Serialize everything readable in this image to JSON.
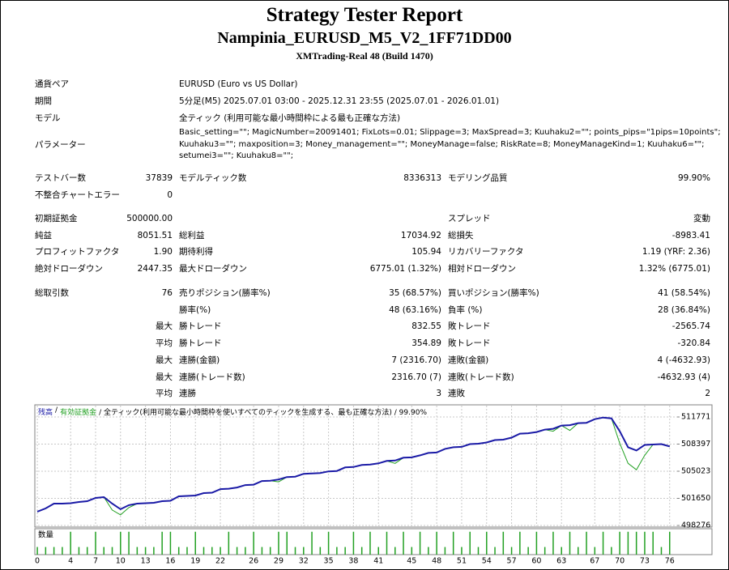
{
  "header": {
    "title": "Strategy Tester Report",
    "subtitle": "Nampinia_EURUSD_M5_V2_1FF71DD00",
    "server": "XMTrading-Real 48 (Build 1470)"
  },
  "info": [
    {
      "label": "通貨ペア",
      "value": "EURUSD (Euro vs US Dollar)"
    },
    {
      "label": "期間",
      "value": "5分足(M5) 2025.07.01 03:00 - 2025.12.31 23:55 (2025.07.01 - 2026.01.01)"
    },
    {
      "label": "モデル",
      "value": "全ティック (利用可能な最小時間枠による最も正確な方法)"
    }
  ],
  "parameters": {
    "label": "パラメーター",
    "lines": [
      "Basic_setting=\"\"; MagicNumber=20091401; FixLots=0.01; Slippage=3; MaxSpread=3; Kuuhaku2=\"\"; points_pips=\"1pips=10points\";",
      "Kuuhaku3=\"\"; maxposition=3; Money_management=\"\"; MoneyManage=false; RiskRate=8; MoneyManageKind=1; Kuuhaku6=\"\";",
      "setumei3=\"\"; Kuuhaku8=\"\";"
    ]
  },
  "stats": [
    [
      {
        "l1": "テストバー数",
        "v1": "37839",
        "l2": "モデルティック数",
        "v2": "8336313",
        "l3": "モデリング品質",
        "v3": "99.90%"
      },
      {
        "l1": "不整合チャートエラー",
        "v1": "0"
      }
    ],
    [
      {
        "l1": "初期証拠金",
        "v1": "500000.00",
        "l3": "スプレッド",
        "v3": "変動"
      },
      {
        "l1": "純益",
        "v1": "8051.51",
        "l2": "総利益",
        "v2": "17034.92",
        "l3": "総損失",
        "v3": "-8983.41"
      },
      {
        "l1": "プロフィットファクタ",
        "v1": "1.90",
        "l2": "期待利得",
        "v2": "105.94",
        "l3": "リカバリーファクタ",
        "v3": "1.19 (YRF: 2.36)"
      },
      {
        "l1": "絶対ドローダウン",
        "v1": "2447.35",
        "l2": "最大ドローダウン",
        "v2": "6775.01 (1.32%)",
        "l3": "相対ドローダウン",
        "v3": "1.32% (6775.01)"
      }
    ],
    [
      {
        "l1": "総取引数",
        "v1": "76",
        "l2": "売りポジション(勝率%)",
        "v2": "35 (68.57%)",
        "l3": "買いポジション(勝率%)",
        "v3": "41 (58.54%)"
      },
      {
        "l2": "勝率(%)",
        "v2": "48 (63.16%)",
        "l3": "負率 (%)",
        "v3": "28 (36.84%)"
      },
      {
        "v1": "最大",
        "l2": "勝トレード",
        "v2": "832.55",
        "l3": "敗トレード",
        "v3": "-2565.74"
      },
      {
        "v1": "平均",
        "l2": "勝トレード",
        "v2": "354.89",
        "l3": "敗トレード",
        "v3": "-320.84"
      },
      {
        "v1": "最大",
        "l2": "連勝(金額)",
        "v2": "7 (2316.70)",
        "l3": "連敗(金額)",
        "v3": "4 (-4632.93)"
      },
      {
        "v1": "最大",
        "l2": "連勝(トレード数)",
        "v2": "2316.70 (7)",
        "l3": "連敗(トレード数)",
        "v3": "-4632.93 (4)"
      },
      {
        "v1": "平均",
        "l2": "連勝",
        "v2": "3",
        "l3": "連敗",
        "v3": "2"
      }
    ]
  ],
  "chart_data": {
    "type": "line",
    "legend_separator": "/",
    "note": "/ 全ティック(利用可能な最小時間枠を使いすべてのティックを生成する、最も正確な方法) / 99.90%",
    "x": [
      0,
      1,
      2,
      3,
      4,
      5,
      6,
      7,
      8,
      9,
      10,
      11,
      12,
      13,
      14,
      15,
      16,
      17,
      18,
      19,
      20,
      21,
      22,
      23,
      24,
      25,
      26,
      27,
      28,
      29,
      30,
      31,
      32,
      33,
      34,
      35,
      36,
      37,
      38,
      39,
      40,
      41,
      42,
      43,
      44,
      45,
      46,
      47,
      48,
      49,
      50,
      51,
      52,
      53,
      54,
      55,
      56,
      57,
      58,
      59,
      60,
      61,
      62,
      63,
      64,
      65,
      66,
      67,
      68,
      69,
      70,
      71,
      72,
      73,
      74,
      75,
      76
    ],
    "series": [
      {
        "name": "残高",
        "color": "#1a1aa6",
        "values": [
          500000,
          500400,
          501000,
          501000,
          501050,
          501200,
          501300,
          501700,
          501800,
          501000,
          500300,
          500800,
          501000,
          501050,
          501100,
          501300,
          501350,
          501900,
          501950,
          502000,
          502300,
          502350,
          502800,
          502850,
          503000,
          503300,
          503350,
          503800,
          503850,
          504000,
          504300,
          504350,
          504700,
          504750,
          504800,
          505000,
          505050,
          505500,
          505550,
          505800,
          505850,
          506000,
          506300,
          506350,
          506700,
          506750,
          507000,
          507300,
          507350,
          507800,
          508000,
          508050,
          508400,
          508450,
          508600,
          508900,
          508950,
          509200,
          509700,
          509750,
          509900,
          510200,
          510300,
          510700,
          510750,
          511000,
          511050,
          511500,
          511700,
          511600,
          510000,
          508000,
          507600,
          508300,
          508350,
          508400,
          508100
        ]
      },
      {
        "name": "有効証拠金",
        "color": "#22a022",
        "values": [
          500000,
          500400,
          501000,
          501000,
          501050,
          501200,
          501300,
          501700,
          501800,
          500200,
          499600,
          500500,
          501000,
          501050,
          501100,
          501300,
          501350,
          501900,
          501950,
          502000,
          502300,
          502350,
          502800,
          502850,
          503000,
          503300,
          503350,
          503800,
          503850,
          503700,
          504300,
          504350,
          504700,
          504750,
          504800,
          505000,
          505050,
          505500,
          505550,
          505800,
          505850,
          506000,
          506300,
          506000,
          506700,
          506750,
          507000,
          507300,
          507350,
          507800,
          508000,
          508050,
          508400,
          508450,
          508600,
          508900,
          508950,
          509200,
          509700,
          509750,
          509900,
          510200,
          510000,
          510700,
          510100,
          511000,
          511050,
          511500,
          511700,
          511600,
          508500,
          506000,
          505200,
          507000,
          508350,
          508400,
          508100
        ]
      }
    ],
    "xlim": [
      -0.3,
      76.9
    ],
    "xticks": [
      0,
      4,
      7,
      10,
      13,
      16,
      19,
      22,
      26,
      29,
      32,
      35,
      38,
      41,
      45,
      48,
      51,
      54,
      57,
      60,
      63,
      67,
      70,
      73,
      76
    ],
    "ylim": [
      498075,
      513180
    ],
    "yticks": [
      498276,
      501650,
      505023,
      508397,
      511771
    ],
    "grid": true,
    "volume": {
      "name": "数量",
      "color": "#22a022",
      "ylim": [
        0,
        3.4
      ],
      "values": [
        1,
        1,
        1,
        1,
        3,
        1,
        1,
        3,
        1,
        1,
        3,
        3,
        1,
        1,
        1,
        3,
        3,
        1,
        1,
        3,
        1,
        1,
        1,
        3,
        1,
        1,
        3,
        1,
        1,
        3,
        3,
        1,
        1,
        3,
        1,
        3,
        1,
        1,
        3,
        1,
        3,
        1,
        3,
        1,
        3,
        1,
        3,
        1,
        3,
        1,
        3,
        1,
        3,
        1,
        3,
        1,
        3,
        1,
        3,
        1,
        3,
        1,
        3,
        1,
        3,
        1,
        3,
        1,
        3,
        1,
        3,
        3,
        3,
        3,
        3,
        1,
        3
      ]
    }
  }
}
